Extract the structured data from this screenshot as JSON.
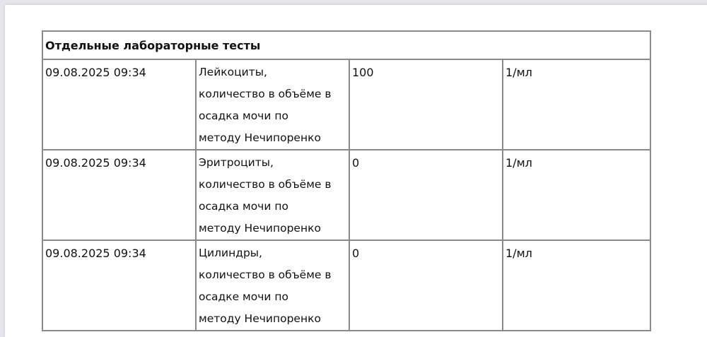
{
  "section_title": "Отдельные лабораторные тесты",
  "rows": [
    {
      "datetime": "09.08.2025 09:34",
      "name_lines": [
        "Лейкоциты,",
        "количество в объёме в",
        "осадка мочи по",
        "методу Нечипоренко"
      ],
      "value": "100",
      "unit": "1/мл"
    },
    {
      "datetime": "09.08.2025 09:34",
      "name_lines": [
        "Эритроциты,",
        "количество в объёме в",
        "осадка мочи по",
        "методу Нечипоренко"
      ],
      "value": "0",
      "unit": "1/мл"
    },
    {
      "datetime": "09.08.2025 09:34",
      "name_lines": [
        "Цилиндры,",
        "количество в объёме в",
        "осадке мочи по",
        "методу Нечипоренко"
      ],
      "value": "0",
      "unit": "1/мл"
    }
  ]
}
